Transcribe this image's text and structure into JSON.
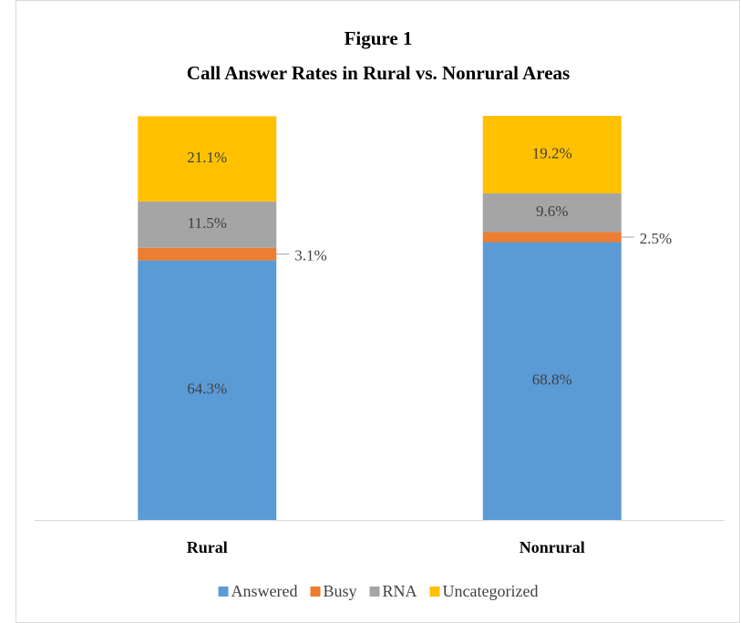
{
  "chart_data": {
    "type": "stacked_bar",
    "title": "Figure 1",
    "subtitle": "Call Answer Rates in Rural vs. Nonrural Areas",
    "categories": [
      "Rural",
      "Nonrural"
    ],
    "series": [
      {
        "name": "Answered",
        "color": "#5b9bd5",
        "values": [
          64.3,
          68.8
        ],
        "value_labels": [
          "64.3%",
          "68.8%"
        ]
      },
      {
        "name": "Busy",
        "color": "#ed7d31",
        "values": [
          3.1,
          2.5
        ],
        "value_labels": [
          "3.1%",
          "2.5%"
        ]
      },
      {
        "name": "RNA",
        "color": "#a5a5a5",
        "values": [
          11.5,
          9.6
        ],
        "value_labels": [
          "11.5%",
          "9.6%"
        ]
      },
      {
        "name": "Uncategorized",
        "color": "#ffc000",
        "values": [
          21.1,
          19.2
        ],
        "value_labels": [
          "21.1%",
          "19.2%"
        ]
      }
    ],
    "legend": "bottom"
  }
}
